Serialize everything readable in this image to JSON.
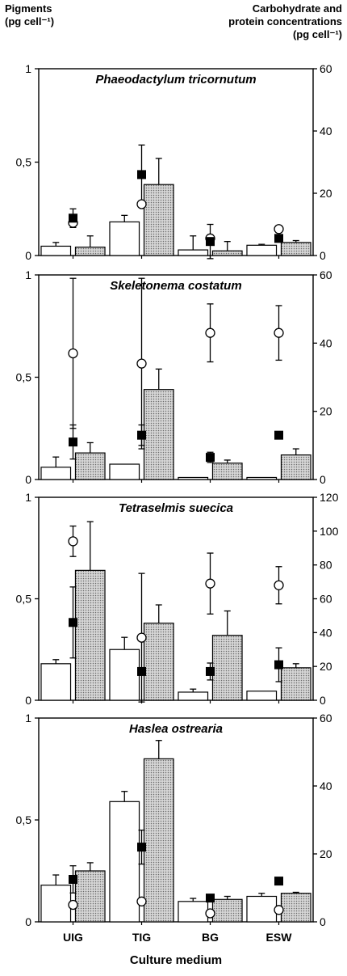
{
  "header": {
    "left_line1": "Pigments",
    "left_line2": "(pg cell⁻¹)",
    "right_line1": "Carbohydrate and",
    "right_line2": "protein concentrations",
    "right_line3": "(pg cell⁻¹)"
  },
  "colors": {
    "filled_square": "#000000",
    "open_circle": "#ffffff",
    "white_bar": "#ffffff",
    "hatched_bar": "#bdbdbd"
  },
  "chart_data": {
    "type": "bar",
    "xlabel": "Culture medium",
    "categories": [
      "UIG",
      "TIG",
      "BG",
      "ESW"
    ],
    "left_axis_ticks": [
      "0",
      "0,5",
      "1"
    ],
    "panels": [
      {
        "title": "Phaeodactylum tricornutum",
        "ylim_left": [
          0,
          1
        ],
        "ylim_right": [
          0,
          60
        ],
        "right_ticks": [
          "0",
          "20",
          "40",
          "60"
        ],
        "white_bars": {
          "values": [
            0.05,
            0.18,
            0.03,
            0.055
          ],
          "errors": [
            0.02,
            0.035,
            0.075,
            0.005
          ]
        },
        "hatched_bars": {
          "values": [
            0.045,
            0.38,
            0.025,
            0.07
          ],
          "errors": [
            0.06,
            0.14,
            0.05,
            0.01
          ]
        },
        "filled_squares": {
          "values": [
            12,
            26,
            4.5,
            5.5
          ],
          "errors": [
            3,
            9.5,
            5.5,
            0
          ]
        },
        "open_circles": {
          "values": [
            10.5,
            16.5,
            5.5,
            8.5
          ],
          "errors": [
            0,
            0,
            0,
            0
          ]
        }
      },
      {
        "title": "Skeletonema costatum",
        "ylim_left": [
          0,
          1
        ],
        "ylim_right": [
          0,
          60
        ],
        "right_ticks": [
          "0",
          "20",
          "40",
          "60"
        ],
        "white_bars": {
          "values": [
            0.06,
            0.075,
            0.01,
            0.01
          ],
          "errors": [
            0.05,
            0,
            0,
            0
          ]
        },
        "hatched_bars": {
          "values": [
            0.13,
            0.44,
            0.08,
            0.12
          ],
          "errors": [
            0.05,
            0.1,
            0.015,
            0.03
          ]
        },
        "filled_squares": {
          "values": [
            11,
            13,
            6.5,
            13
          ],
          "errors": [
            5,
            3,
            1.5,
            0
          ]
        },
        "open_circles": {
          "values": [
            37,
            34,
            43,
            43
          ],
          "errors": [
            22,
            25,
            8.5,
            8
          ]
        }
      },
      {
        "title": "Tetraselmis suecica",
        "ylim_left": [
          0,
          1
        ],
        "ylim_right": [
          0,
          120
        ],
        "right_ticks": [
          "0",
          "20",
          "40",
          "60",
          "80",
          "100",
          "120"
        ],
        "white_bars": {
          "values": [
            0.18,
            0.25,
            0.04,
            0.045
          ],
          "errors": [
            0.02,
            0.06,
            0.015,
            0
          ]
        },
        "hatched_bars": {
          "values": [
            0.64,
            0.38,
            0.32,
            0.16
          ],
          "errors": [
            0.24,
            0.09,
            0.12,
            0.02
          ]
        },
        "filled_squares": {
          "values": [
            46,
            17,
            17,
            21
          ],
          "errors": [
            21,
            0,
            5,
            10
          ]
        },
        "open_circles": {
          "values": [
            94,
            37,
            69,
            68
          ],
          "errors": [
            9,
            38,
            18,
            11
          ]
        }
      },
      {
        "title": "Haslea ostrearia",
        "ylim_left": [
          0,
          1
        ],
        "ylim_right": [
          0,
          60
        ],
        "right_ticks": [
          "0",
          "20",
          "40",
          "60"
        ],
        "white_bars": {
          "values": [
            0.18,
            0.59,
            0.1,
            0.125
          ],
          "errors": [
            0.05,
            0.05,
            0.015,
            0.015
          ]
        },
        "hatched_bars": {
          "values": [
            0.25,
            0.8,
            0.11,
            0.14
          ],
          "errors": [
            0.04,
            0.09,
            0.015,
            0.005
          ]
        },
        "filled_squares": {
          "values": [
            12.5,
            22,
            7,
            12
          ],
          "errors": [
            4,
            5,
            0,
            0
          ]
        },
        "open_circles": {
          "values": [
            5,
            6,
            2.5,
            3.5
          ],
          "errors": [
            0,
            0,
            0,
            0
          ]
        }
      }
    ]
  }
}
